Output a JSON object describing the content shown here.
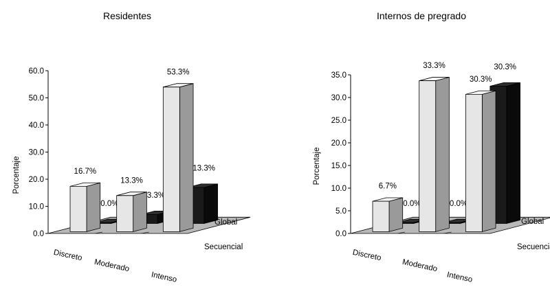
{
  "colors": {
    "front_series": "#e6e6e6",
    "back_series": "#1a1a1a",
    "floor": "#b8b8b8",
    "wall": "#ffffff"
  },
  "chart_data": [
    {
      "type": "bar",
      "title": "Residentes",
      "ylabel": "Porcentaje",
      "xlabel": "",
      "categories": [
        "Discreto",
        "Moderado",
        "Intenso"
      ],
      "depth_labels": [
        "Secuencial",
        "Global"
      ],
      "series": [
        {
          "name": "Secuencial",
          "values": [
            16.7,
            13.3,
            53.3
          ],
          "labels": [
            "16.7%",
            "13.3%",
            "53.3%"
          ]
        },
        {
          "name": "Global",
          "values": [
            0.0,
            3.3,
            13.3
          ],
          "labels": [
            "0.0%",
            "3.3%",
            "13.3%"
          ]
        }
      ],
      "ylim": [
        0,
        60
      ],
      "yticks": [
        "0.0",
        "10.0",
        "20.0",
        "30.0",
        "40.0",
        "50.0",
        "60.0"
      ],
      "grid": false,
      "legend": "none"
    },
    {
      "type": "bar",
      "title": "Internos de pregrado",
      "ylabel": "Porcentaje",
      "xlabel": "",
      "categories": [
        "Discreto",
        "Moderado",
        "Intenso"
      ],
      "depth_labels": [
        "Secuencial",
        "Global"
      ],
      "series": [
        {
          "name": "Secuencial",
          "values": [
            6.7,
            33.3,
            30.3
          ],
          "labels": [
            "6.7%",
            "33.3%",
            "30.3%"
          ]
        },
        {
          "name": "Global",
          "values": [
            0.0,
            0.0,
            30.3
          ],
          "labels": [
            "0.0%",
            "0.0%",
            "30.3%"
          ]
        }
      ],
      "ylim": [
        0,
        35
      ],
      "yticks": [
        "0.0",
        "5.0",
        "10.0",
        "15.0",
        "20.0",
        "25.0",
        "30.0",
        "35.0"
      ],
      "grid": false,
      "legend": "none"
    }
  ]
}
